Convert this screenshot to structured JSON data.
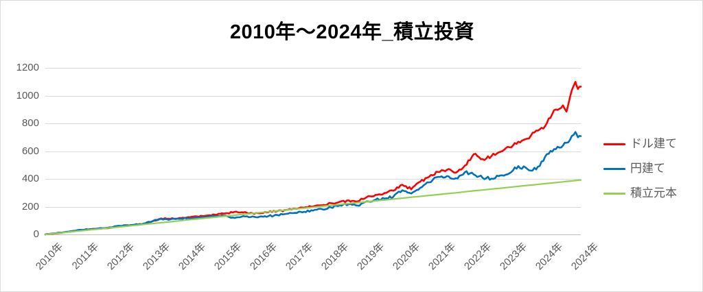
{
  "title": "2010年～2024年_積立投資",
  "colors": {
    "background": "#ffffff",
    "border": "#d9d9d9",
    "gridline": "#d9d9d9",
    "axis_line": "#bfbfbf",
    "tick_text": "#595959",
    "title_text": "#000000",
    "series_dollar": "#ff0000",
    "series_yen": "#0070c0",
    "series_principal": "#92d050"
  },
  "legend": {
    "position": "right",
    "items": [
      {
        "key": "dollar",
        "label": "ドル建て",
        "color": "#ff0000"
      },
      {
        "key": "yen",
        "label": "円建て",
        "color": "#0070c0"
      },
      {
        "key": "principal",
        "label": "積立元本",
        "color": "#92d050"
      }
    ]
  },
  "chart_data": {
    "type": "line",
    "title": "2010年～2024年_積立投資",
    "xlabel": "",
    "ylabel": "",
    "ylim": [
      0,
      1200
    ],
    "yticks": [
      0,
      200,
      400,
      600,
      800,
      1000,
      1200
    ],
    "grid": "horizontal",
    "legend_position": "right",
    "x_tick_labels": [
      "2010年",
      "2011年",
      "2012年",
      "2013年",
      "2014年",
      "2015年",
      "2016年",
      "2017年",
      "2018年",
      "2019年",
      "2020年",
      "2021年",
      "2022年",
      "2023年",
      "2024年",
      "2024年"
    ],
    "x": [
      2010.0,
      2010.25,
      2010.5,
      2010.75,
      2011.0,
      2011.25,
      2011.5,
      2011.75,
      2012.0,
      2012.25,
      2012.5,
      2012.75,
      2013.0,
      2013.25,
      2013.5,
      2013.75,
      2014.0,
      2014.25,
      2014.5,
      2014.75,
      2015.0,
      2015.25,
      2015.5,
      2015.75,
      2016.0,
      2016.25,
      2016.5,
      2016.75,
      2017.0,
      2017.25,
      2017.5,
      2017.75,
      2018.0,
      2018.25,
      2018.5,
      2018.75,
      2019.0,
      2019.25,
      2019.5,
      2019.75,
      2020.0,
      2020.25,
      2020.5,
      2020.75,
      2021.0,
      2021.25,
      2021.5,
      2021.75,
      2022.0,
      2022.25,
      2022.5,
      2022.75,
      2023.0,
      2023.25,
      2023.5,
      2023.75,
      2024.0,
      2024.25,
      2024.5,
      2024.6,
      2024.75,
      2024.85,
      2024.92,
      2025.0
    ],
    "series": [
      {
        "key": "dollar",
        "name": "ドル建て",
        "color": "#ff0000",
        "volatile": true,
        "values": [
          0,
          7,
          14,
          22,
          30,
          36,
          42,
          45,
          55,
          62,
          68,
          76,
          95,
          115,
          112,
          118,
          125,
          130,
          135,
          142,
          150,
          158,
          160,
          155,
          152,
          160,
          168,
          176,
          185,
          193,
          201,
          210,
          225,
          235,
          245,
          238,
          268,
          285,
          298,
          315,
          358,
          325,
          380,
          415,
          450,
          465,
          445,
          495,
          578,
          542,
          565,
          595,
          628,
          668,
          690,
          748,
          780,
          895,
          930,
          885,
          1040,
          1100,
          1048,
          1065
        ]
      },
      {
        "key": "yen",
        "name": "円建て",
        "color": "#0070c0",
        "volatile": true,
        "values": [
          0,
          8,
          15,
          24,
          33,
          38,
          44,
          48,
          60,
          66,
          70,
          78,
          95,
          112,
          108,
          112,
          118,
          122,
          126,
          132,
          135,
          122,
          128,
          125,
          128,
          132,
          140,
          148,
          155,
          163,
          172,
          182,
          195,
          210,
          218,
          208,
          238,
          250,
          258,
          272,
          318,
          295,
          335,
          375,
          415,
          420,
          405,
          448,
          432,
          408,
          402,
          425,
          440,
          492,
          472,
          468,
          560,
          615,
          640,
          660,
          710,
          738,
          700,
          708
        ]
      },
      {
        "key": "principal",
        "name": "積立元本",
        "color": "#92d050",
        "volatile": false,
        "values": [
          0,
          7,
          13,
          20,
          26,
          33,
          39,
          46,
          52,
          59,
          65,
          72,
          78,
          85,
          91,
          98,
          105,
          111,
          118,
          124,
          131,
          137,
          144,
          150,
          157,
          163,
          170,
          176,
          183,
          189,
          196,
          203,
          209,
          216,
          222,
          229,
          235,
          242,
          248,
          255,
          261,
          268,
          274,
          281,
          287,
          294,
          300,
          307,
          314,
          320,
          327,
          333,
          340,
          346,
          353,
          359,
          366,
          372,
          379,
          382,
          385,
          388,
          390,
          392
        ]
      }
    ]
  }
}
